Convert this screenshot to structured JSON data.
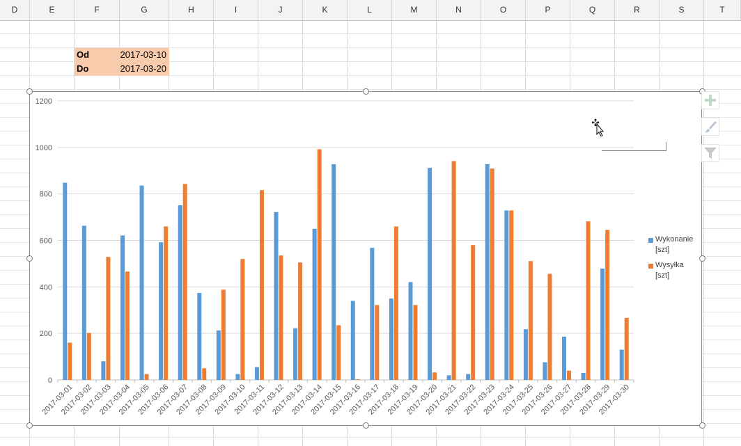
{
  "columns": [
    "D",
    "E",
    "F",
    "G",
    "H",
    "I",
    "J",
    "K",
    "L",
    "M",
    "N",
    "O",
    "P",
    "Q",
    "R",
    "S",
    "T"
  ],
  "cells": {
    "od_label": "Od",
    "od_value": "2017-03-10",
    "do_label": "Do",
    "do_value": "2017-03-20"
  },
  "colors": {
    "wykonanie": "#5b9bd5",
    "wysylka": "#ed7d31",
    "cell_fill": "#f8cbad"
  },
  "icons": [
    "plus-icon",
    "brush-icon",
    "filter-icon",
    "move-cursor-icon"
  ],
  "chart_data": {
    "type": "bar",
    "title": "",
    "xlabel": "",
    "ylabel": "",
    "ylim": [
      0,
      1200
    ],
    "yticks": [
      "0",
      "200",
      "400",
      "600",
      "800",
      "1000",
      "1200"
    ],
    "grid": true,
    "legend_position": "right",
    "categories": [
      "2017-03-01",
      "2017-03-02",
      "2017-03-03",
      "2017-03-04",
      "2017-03-05",
      "2017-03-06",
      "2017-03-07",
      "2017-03-08",
      "2017-03-09",
      "2017-03-10",
      "2017-03-11",
      "2017-03-12",
      "2017-03-13",
      "2017-03-14",
      "2017-03-15",
      "2017-03-16",
      "2017-03-17",
      "2017-03-18",
      "2017-03-19",
      "2017-03-20",
      "2017-03-21",
      "2017-03-22",
      "2017-03-23",
      "2017-03-24",
      "2017-03-25",
      "2017-03-26",
      "2017-03-27",
      "2017-03-28",
      "2017-03-29",
      "2017-03-30"
    ],
    "series": [
      {
        "name": "Wykonanie [szt]",
        "name_line1": "Wykonanie",
        "name_line2": "[szt]",
        "values": [
          848,
          663,
          80,
          621,
          836,
          592,
          751,
          374,
          213,
          25,
          55,
          722,
          222,
          650,
          928,
          340,
          568,
          350,
          421,
          912,
          20,
          25,
          928,
          729,
          218,
          76,
          186,
          30,
          479,
          130
        ]
      },
      {
        "name": "Wysyłka [szt]",
        "name_line1": "Wysyłka",
        "name_line2": "[szt]",
        "values": [
          160,
          202,
          529,
          466,
          25,
          660,
          843,
          50,
          388,
          520,
          816,
          535,
          505,
          992,
          235,
          3,
          322,
          660,
          322,
          32,
          941,
          580,
          909,
          729,
          511,
          456,
          40,
          682,
          645,
          267
        ]
      }
    ]
  }
}
